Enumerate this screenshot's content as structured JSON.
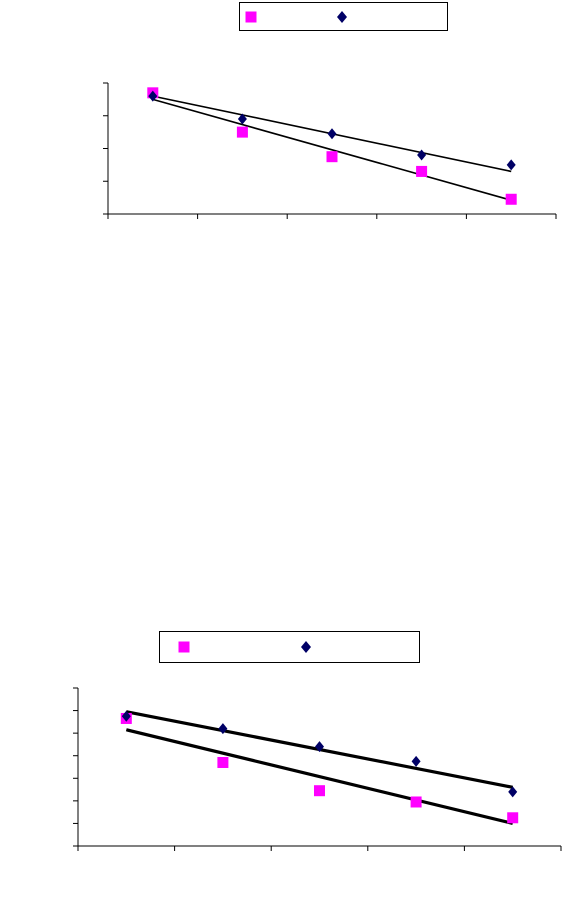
{
  "colors": {
    "series_a": "#ff00ff",
    "series_b": "#000066",
    "axis": "#000000",
    "trend": "#000000"
  },
  "chart_data": [
    {
      "type": "scatter",
      "title": "",
      "xlabel": "",
      "ylabel": "",
      "legend_position": "top-center",
      "grid": false,
      "trendlines": true,
      "xlim": [
        0,
        5
      ],
      "ylim": [
        0,
        4
      ],
      "series": [
        {
          "name": "",
          "marker": "square",
          "color": "#ff00ff",
          "x": [
            0.5,
            1.5,
            2.5,
            3.5,
            4.5
          ],
          "y": [
            3.7,
            2.5,
            1.75,
            1.3,
            0.45
          ],
          "trend": {
            "x0": 0.5,
            "y0": 3.5,
            "x1": 4.5,
            "y1": 0.42
          }
        },
        {
          "name": "",
          "marker": "diamond",
          "color": "#000066",
          "x": [
            0.5,
            1.5,
            2.5,
            3.5,
            4.5
          ],
          "y": [
            3.6,
            2.9,
            2.45,
            1.8,
            1.5
          ],
          "trend": {
            "x0": 0.5,
            "y0": 3.6,
            "x1": 4.5,
            "y1": 1.3
          }
        }
      ]
    },
    {
      "type": "scatter",
      "title": "",
      "xlabel": "",
      "ylabel": "",
      "legend_position": "top-center",
      "grid": false,
      "trendlines": true,
      "xlim": [
        0,
        5
      ],
      "ylim": [
        0,
        7
      ],
      "series": [
        {
          "name": "",
          "marker": "square",
          "color": "#ff00ff",
          "x": [
            0.5,
            1.5,
            2.5,
            3.5,
            4.5
          ],
          "y": [
            5.65,
            3.7,
            2.45,
            1.95,
            1.25
          ],
          "trend": {
            "x0": 0.5,
            "y0": 5.15,
            "x1": 4.5,
            "y1": 1.0
          }
        },
        {
          "name": "",
          "marker": "diamond",
          "color": "#000066",
          "x": [
            0.5,
            1.5,
            2.5,
            3.5,
            4.5
          ],
          "y": [
            5.75,
            5.2,
            4.4,
            3.75,
            2.4
          ],
          "trend": {
            "x0": 0.5,
            "y0": 5.95,
            "x1": 4.5,
            "y1": 2.6
          }
        }
      ]
    }
  ]
}
